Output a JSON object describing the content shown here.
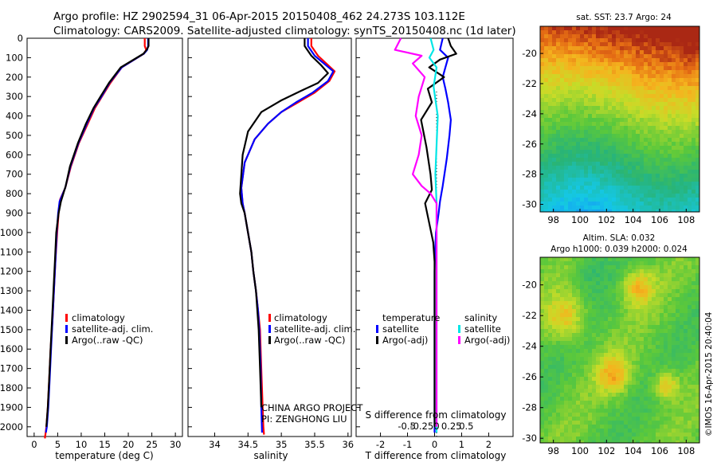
{
  "header": {
    "line1": "Argo profile: HZ 2902594_31 06-Apr-2015 20150408_462 24.273S 103.112E",
    "line2": "Climatology: CARS2009. Satellite-adjusted climatology: synTS_20150408.nc (1d later)"
  },
  "colors": {
    "climatology": "#ff0000",
    "satellite": "#0000ff",
    "argo": "#000000",
    "sal_satellite": "#00e6e6",
    "sal_argo": "#ff00ff"
  },
  "depth_axis": {
    "ticks": [
      0,
      100,
      200,
      300,
      400,
      500,
      600,
      700,
      800,
      900,
      1000,
      1100,
      1200,
      1300,
      1400,
      1500,
      1600,
      1700,
      1800,
      1900,
      2000
    ],
    "range": [
      0,
      2050
    ]
  },
  "chart_data": [
    {
      "type": "line",
      "id": "temperature",
      "xlabel": "temperature (deg C)",
      "xlim": [
        -1.5,
        31.5
      ],
      "xticks": [
        0,
        5,
        10,
        15,
        20,
        25,
        30
      ],
      "legend": [
        "climatology",
        "satellite-adj. clim.",
        "Argo(..raw -QC)"
      ],
      "series": [
        {
          "name": "climatology",
          "color": "#ff0000",
          "x": [
            23.5,
            23.5,
            23.8,
            23.3,
            18.6,
            16.2,
            14.4,
            12.9,
            11.4,
            9.5,
            7.8,
            6.6,
            5.5,
            5.2,
            4.9,
            4.5,
            4.2,
            3.9,
            3.5,
            3.2,
            2.9,
            2.6,
            2.4,
            2.3,
            2.3
          ],
          "y": [
            0,
            40,
            60,
            80,
            150,
            230,
            300,
            360,
            440,
            540,
            660,
            770,
            830,
            900,
            1000,
            1150,
            1300,
            1450,
            1600,
            1750,
            1900,
            2000,
            2040,
            2050,
            2060
          ]
        },
        {
          "name": "satellite-adj. clim.",
          "color": "#0000ff",
          "x": [
            24.2,
            24.2,
            24.0,
            23.3,
            18.6,
            16.0,
            14.3,
            12.7,
            11.2,
            9.4,
            7.7,
            6.6,
            5.4,
            5.1,
            4.8,
            4.5,
            4.2,
            3.9,
            3.6,
            3.3,
            3.0,
            2.7,
            2.5
          ],
          "y": [
            0,
            40,
            60,
            80,
            150,
            230,
            300,
            360,
            440,
            540,
            660,
            770,
            840,
            900,
            1000,
            1150,
            1300,
            1450,
            1600,
            1750,
            1900,
            2000,
            2030
          ]
        },
        {
          "name": "Argo(..raw -QC)",
          "color": "#000000",
          "x": [
            24.3,
            24.3,
            23.9,
            23.2,
            18.4,
            15.9,
            14.1,
            12.6,
            11.0,
            9.3,
            7.6,
            6.7,
            5.7,
            5.2,
            4.7,
            4.4,
            4.1,
            3.8,
            3.5,
            3.2,
            2.9,
            2.6
          ],
          "y": [
            0,
            40,
            60,
            80,
            150,
            230,
            300,
            360,
            440,
            540,
            660,
            760,
            840,
            900,
            1000,
            1150,
            1300,
            1450,
            1600,
            1750,
            1900,
            2000
          ]
        }
      ]
    },
    {
      "type": "line",
      "id": "salinity",
      "xlabel": "salinity",
      "xlim": [
        33.6,
        36.05
      ],
      "xticks": [
        34,
        34.5,
        35,
        35.5,
        36
      ],
      "legend": [
        "climatology",
        "satellite-adj. clim.",
        "Argo(..raw -QC)"
      ],
      "annotations": [
        "CHINA ARGO PROJECT",
        "PI: ZENGHONG LIU"
      ],
      "series": [
        {
          "name": "climatology",
          "color": "#ff0000",
          "x": [
            35.45,
            35.45,
            35.55,
            35.8,
            35.72,
            35.5,
            35.25,
            35.0,
            34.8,
            34.6,
            34.45,
            34.4,
            34.42,
            34.45,
            34.5,
            34.55,
            34.58,
            34.62,
            34.65,
            34.68,
            34.7,
            34.72,
            34.73,
            34.74
          ],
          "y": [
            0,
            40,
            90,
            170,
            220,
            280,
            330,
            380,
            440,
            520,
            640,
            770,
            850,
            900,
            1000,
            1100,
            1200,
            1300,
            1400,
            1500,
            1700,
            1900,
            2000,
            2040
          ]
        },
        {
          "name": "satellite-adj. clim.",
          "color": "#0000ff",
          "x": [
            35.4,
            35.4,
            35.5,
            35.78,
            35.7,
            35.47,
            35.22,
            35.0,
            34.8,
            34.6,
            34.45,
            34.4,
            34.42,
            34.45,
            34.5,
            34.55,
            34.58,
            34.62,
            34.65,
            34.67,
            34.69,
            34.7,
            34.71
          ],
          "y": [
            0,
            40,
            90,
            170,
            220,
            280,
            330,
            380,
            440,
            520,
            640,
            770,
            850,
            900,
            1000,
            1100,
            1200,
            1300,
            1400,
            1500,
            1700,
            1900,
            2030
          ]
        },
        {
          "name": "Argo(..raw -QC)",
          "color": "#000000",
          "x": [
            35.35,
            35.35,
            35.45,
            35.6,
            35.7,
            35.55,
            35.3,
            35.0,
            34.7,
            34.5,
            34.42,
            34.38,
            34.4,
            34.45,
            34.5,
            34.55,
            34.58,
            34.62,
            34.64,
            34.66,
            34.68,
            34.7
          ],
          "y": [
            0,
            40,
            90,
            140,
            180,
            230,
            270,
            320,
            380,
            480,
            600,
            800,
            850,
            900,
            1000,
            1100,
            1200,
            1300,
            1400,
            1500,
            1700,
            1900
          ]
        }
      ]
    },
    {
      "type": "line",
      "id": "difference",
      "xlabel": "T difference from climatology",
      "xlabel_top": "S difference from climatology",
      "xlim": [
        -2.9,
        2.9
      ],
      "xticks": [
        -2,
        -1,
        0,
        1,
        2
      ],
      "xticks_top": [
        -0.5,
        -0.25,
        0,
        0.25,
        0.5
      ],
      "legend_headers": [
        "temperature",
        "salinity"
      ],
      "legend": [
        "satellite",
        "Argo(-adj)",
        "satellite",
        "Argo(-adj)"
      ],
      "series": [
        {
          "name": "T satellite",
          "color": "#0000ff",
          "x": [
            0.3,
            0.2,
            0.5,
            0.4,
            0.3,
            0.4,
            0.5,
            0.6,
            0.55,
            0.45,
            0.3,
            0.2,
            0.15,
            0.05,
            0.02,
            0.0,
            0.0,
            0.0,
            0.0,
            0.0
          ],
          "y": [
            0,
            60,
            100,
            150,
            200,
            260,
            330,
            420,
            500,
            620,
            760,
            840,
            900,
            1000,
            1100,
            1200,
            1400,
            1600,
            1800,
            2030
          ]
        },
        {
          "name": "T Argo(-adj)",
          "color": "#000000",
          "x": [
            0.5,
            0.6,
            0.8,
            0.2,
            -0.2,
            0.35,
            -0.25,
            -0.1,
            -0.5,
            -0.3,
            -0.15,
            -0.1,
            -0.35,
            -0.2,
            -0.05,
            0.0,
            0.0,
            0.0,
            0.0
          ],
          "y": [
            0,
            40,
            80,
            110,
            150,
            200,
            260,
            330,
            420,
            560,
            700,
            780,
            850,
            950,
            1050,
            1150,
            1300,
            1600,
            2000
          ]
        },
        {
          "name": "S satellite",
          "color": "#00e6e6",
          "x": [
            -0.1,
            -0.05,
            -0.12,
            0.0,
            -0.05,
            0.02,
            0.0,
            -0.02,
            0.0,
            0.0,
            0.0,
            0.0,
            0.0,
            0.0,
            0.0
          ],
          "y": [
            0,
            60,
            100,
            150,
            250,
            400,
            550,
            700,
            850,
            1000,
            1200,
            1400,
            1600,
            1800,
            2030
          ]
        },
        {
          "name": "S Argo(-adj)",
          "color": "#ff00ff",
          "x": [
            -0.6,
            -0.7,
            -0.25,
            -0.4,
            -0.2,
            -0.3,
            -0.35,
            -0.25,
            -0.3,
            -0.4,
            -0.25,
            -0.1,
            0.0,
            0.0,
            0.0,
            0.0
          ],
          "y": [
            0,
            60,
            90,
            130,
            200,
            300,
            400,
            500,
            600,
            700,
            760,
            800,
            850,
            1000,
            1500,
            2000
          ]
        }
      ]
    },
    {
      "type": "heatmap",
      "id": "sst",
      "title": "sat. SST: 23.7 Argo: 24",
      "xlim": [
        97,
        109
      ],
      "ylim": [
        -30.5,
        -18.2
      ],
      "xticks": [
        98,
        100,
        102,
        104,
        106,
        108
      ],
      "yticks": [
        -20,
        -22,
        -24,
        -26,
        -28,
        -30
      ]
    },
    {
      "type": "heatmap",
      "id": "sla",
      "title_line1": "Altim. SLA: 0.032",
      "title_line2": "Argo h1000: 0.039 h2000: 0.024",
      "xlim": [
        97,
        109
      ],
      "ylim": [
        -30.3,
        -18.2
      ],
      "xticks": [
        98,
        100,
        102,
        104,
        106,
        108
      ],
      "yticks": [
        -20,
        -22,
        -24,
        -26,
        -28,
        -30
      ]
    }
  ],
  "side_credit": "©IMOS 16-Apr-2015 20:40:04"
}
